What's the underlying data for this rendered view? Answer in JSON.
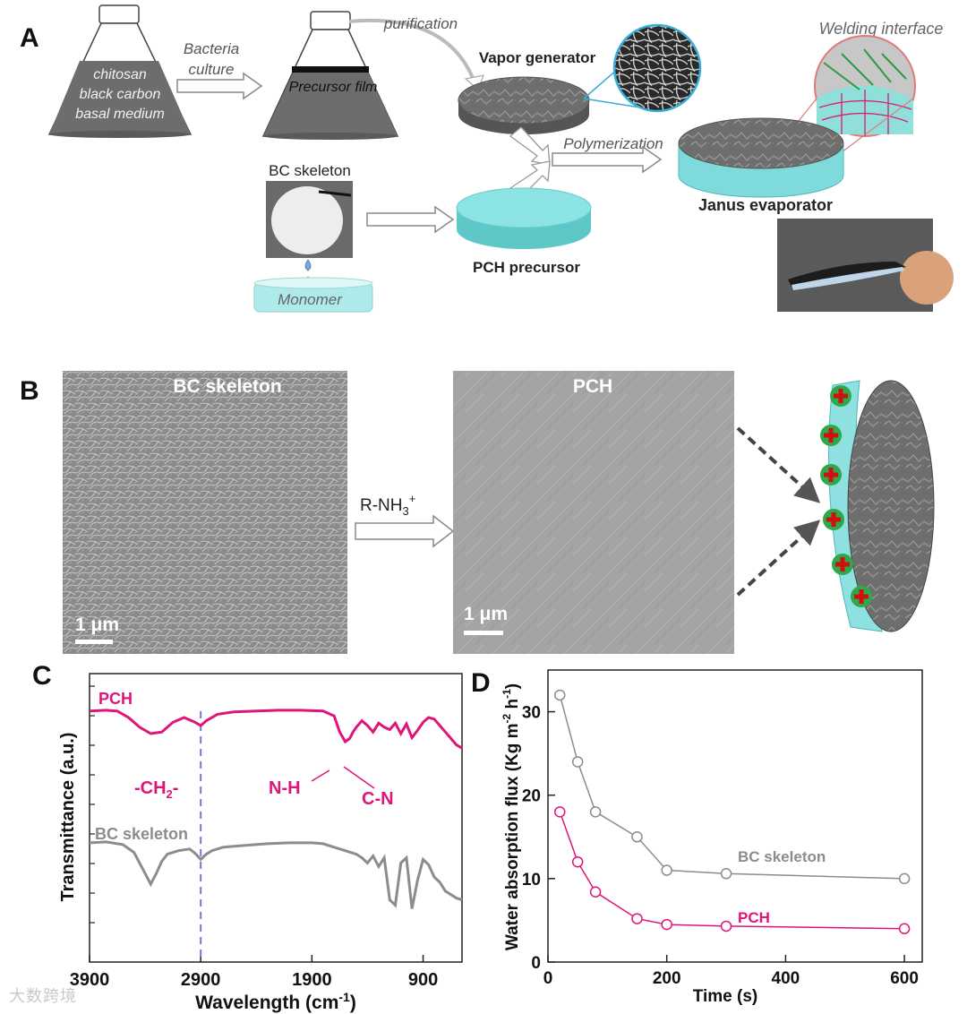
{
  "panels": {
    "A": "A",
    "B": "B",
    "C": "C",
    "D": "D"
  },
  "panel_a": {
    "flask1_lines": [
      "chitosan",
      "black carbon",
      "basal medium"
    ],
    "bacteria_line1": "Bacteria",
    "bacteria_line2": "culture",
    "precursor_film": "Precursor film",
    "purification": "purification",
    "vapor_generator": "Vapor generator",
    "welding_interface": "Welding interface",
    "polymerization": "Polymerization",
    "bc_skeleton": "BC skeleton",
    "janus_evaporator": "Janus evaporator",
    "pch_precursor": "PCH precursor",
    "monomer": "Monomer"
  },
  "panel_b": {
    "left_title": "BC skeleton",
    "right_title": "PCH",
    "reaction_label": "R-NH",
    "reaction_sub": "3",
    "reaction_sup": "+",
    "scale_left": "1 μm",
    "scale_right": "1 μm"
  },
  "colors": {
    "pch": "#e0157a",
    "bc": "#8c8c8c",
    "cyan": "#7fdbdb",
    "dashed_line": "#6c7bdc",
    "plus_green": "#2ea84a",
    "plus_red": "#d01010"
  },
  "chart_data": [
    {
      "type": "line",
      "xlabel": "Wavelength (cm",
      "xlabel_sup": "-1",
      "xlabel_end": ")",
      "ylabel": "Transmittance (a.u.)",
      "x_ticks": [
        3900,
        2900,
        1900,
        900
      ],
      "xlim": [
        3900,
        550
      ],
      "reference_x": 2900,
      "series": [
        {
          "name": "PCH",
          "x": [
            3900,
            3750,
            3650,
            3550,
            3450,
            3350,
            3250,
            3150,
            3050,
            2950,
            2900,
            2850,
            2750,
            2600,
            2400,
            2200,
            2000,
            1800,
            1700,
            1650,
            1600,
            1560,
            1530,
            1500,
            1450,
            1400,
            1350,
            1300,
            1250,
            1200,
            1150,
            1100,
            1050,
            1000,
            950,
            900,
            850,
            800,
            750,
            700,
            650,
            600,
            550
          ],
          "y": [
            0.98,
            0.99,
            0.98,
            0.9,
            0.78,
            0.7,
            0.72,
            0.84,
            0.9,
            0.84,
            0.8,
            0.86,
            0.94,
            0.97,
            0.98,
            0.99,
            0.99,
            0.98,
            0.92,
            0.72,
            0.6,
            0.64,
            0.72,
            0.78,
            0.86,
            0.8,
            0.72,
            0.83,
            0.78,
            0.75,
            0.83,
            0.7,
            0.82,
            0.65,
            0.74,
            0.84,
            0.9,
            0.88,
            0.8,
            0.72,
            0.64,
            0.56,
            0.52
          ]
        },
        {
          "name": "BC skeleton",
          "x": [
            3900,
            3750,
            3600,
            3500,
            3400,
            3350,
            3300,
            3250,
            3200,
            3100,
            3000,
            2950,
            2900,
            2850,
            2800,
            2700,
            2500,
            2300,
            2100,
            1900,
            1800,
            1700,
            1600,
            1500,
            1450,
            1400,
            1350,
            1300,
            1250,
            1200,
            1150,
            1100,
            1050,
            1000,
            950,
            900,
            850,
            800,
            750,
            700,
            650,
            600,
            550
          ],
          "y": [
            0.95,
            0.96,
            0.93,
            0.84,
            0.6,
            0.48,
            0.6,
            0.74,
            0.82,
            0.86,
            0.88,
            0.83,
            0.76,
            0.82,
            0.86,
            0.9,
            0.92,
            0.94,
            0.95,
            0.95,
            0.94,
            0.9,
            0.86,
            0.82,
            0.78,
            0.72,
            0.8,
            0.68,
            0.78,
            0.3,
            0.24,
            0.72,
            0.78,
            0.2,
            0.52,
            0.76,
            0.7,
            0.56,
            0.5,
            0.4,
            0.36,
            0.32,
            0.3
          ]
        }
      ],
      "annotations": [
        {
          "text": "-CH",
          "sub": "2",
          "end": "-"
        },
        {
          "text": "N-H"
        },
        {
          "text": "C-N"
        }
      ]
    },
    {
      "type": "line",
      "xlabel": "Time (s)",
      "ylabel": "Water absorption flux (Kg m",
      "ylabel_sup1": "-2",
      "ylabel_mid": " h",
      "ylabel_sup2": "-1",
      "ylabel_end": ")",
      "x_ticks": [
        0,
        200,
        400,
        600
      ],
      "y_ticks": [
        0,
        10,
        20,
        30
      ],
      "xlim": [
        0,
        630
      ],
      "ylim": [
        0,
        35
      ],
      "series": [
        {
          "name": "BC skeleton",
          "x": [
            20,
            50,
            80,
            150,
            200,
            300,
            600
          ],
          "y": [
            32,
            24,
            18,
            15,
            11,
            10.6,
            10
          ]
        },
        {
          "name": "PCH",
          "x": [
            20,
            50,
            80,
            150,
            200,
            300,
            600
          ],
          "y": [
            18,
            12,
            8.4,
            5.2,
            4.5,
            4.3,
            4
          ]
        }
      ]
    }
  ],
  "watermark": "大数跨境"
}
